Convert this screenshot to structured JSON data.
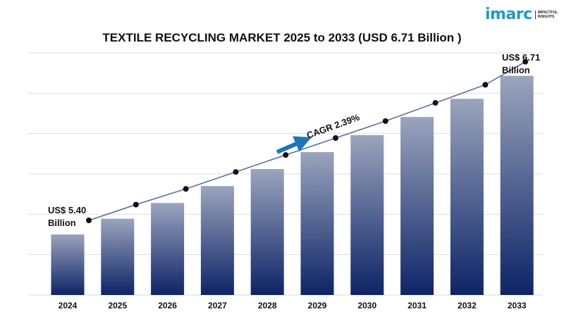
{
  "logo": {
    "word": "imarc",
    "tagline": "IMPACTFUL INSIGHTS"
  },
  "chart_data": {
    "type": "bar",
    "title": "TEXTILE RECYCLING MARKET 2025 to 2033 (USD 6.71 Billion )",
    "xlabel": "",
    "ylabel": "",
    "categories": [
      "2024",
      "2025",
      "2026",
      "2027",
      "2028",
      "2029",
      "2030",
      "2031",
      "2032",
      "2033"
    ],
    "values": [
      5.4,
      5.53,
      5.66,
      5.8,
      5.94,
      6.08,
      6.22,
      6.37,
      6.52,
      6.71
    ],
    "ylim": [
      4.9,
      6.9
    ],
    "grid": true,
    "trend_line": true,
    "annotations": {
      "start_label_1": "US$ 5.40",
      "start_label_2": "Billion",
      "end_label_1": "US$ 6.71",
      "end_label_2": "Billion",
      "cagr": "CAGR 2.39%"
    },
    "colors": {
      "bar_top": "#9aa4bd",
      "bar_bottom": "#0d2466",
      "line": "#4a6aa8",
      "arrow": "#1b75bc",
      "grid": "#dddddd"
    }
  }
}
